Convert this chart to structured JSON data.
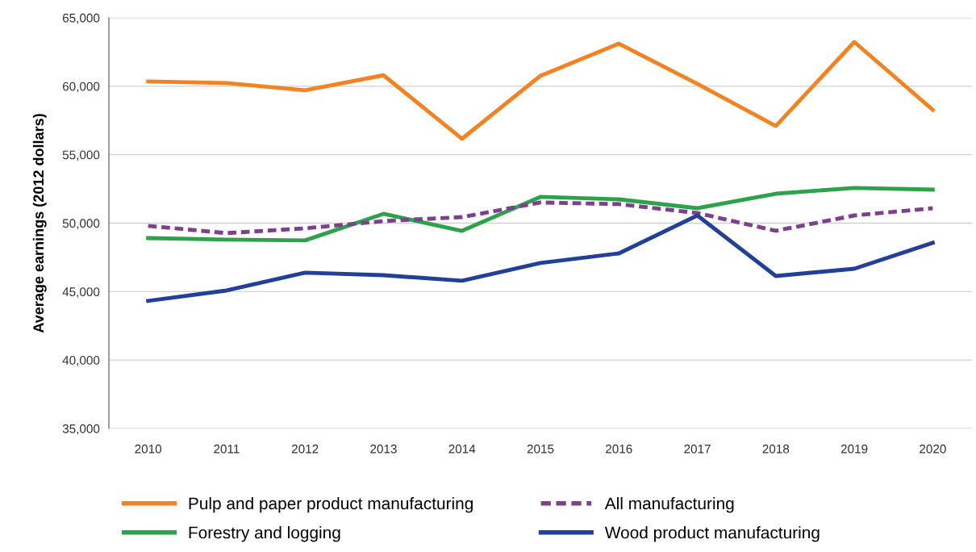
{
  "chart_data": {
    "type": "line",
    "ylabel": "Average earnings (2012 dollars)",
    "categories": [
      "2010",
      "2011",
      "2012",
      "2013",
      "2014",
      "2015",
      "2016",
      "2017",
      "2018",
      "2019",
      "2020"
    ],
    "ylim": [
      35000,
      65000
    ],
    "yticks": [
      {
        "value": 35000,
        "label": "35,000"
      },
      {
        "value": 40000,
        "label": "40,000"
      },
      {
        "value": 45000,
        "label": "45,000"
      },
      {
        "value": 50000,
        "label": "50,000"
      },
      {
        "value": 55000,
        "label": "55,000"
      },
      {
        "value": 60000,
        "label": "60,000"
      },
      {
        "value": 65000,
        "label": "65,000"
      }
    ],
    "grid": "y",
    "legend": "bottom",
    "marker": "none",
    "series": [
      {
        "name": "Pulp and paper product manufacturing",
        "color": "#f58220",
        "line_style": "solid",
        "values": [
          60350,
          60230,
          59700,
          60800,
          56160,
          60760,
          63110,
          60170,
          57100,
          63230,
          58280
        ]
      },
      {
        "name": "Forestry and logging",
        "color": "#2ca24a",
        "line_style": "solid",
        "values": [
          48910,
          48800,
          48740,
          50680,
          49440,
          51920,
          51740,
          51090,
          52150,
          52570,
          52450
        ]
      },
      {
        "name": "All manufacturing",
        "color": "#7f3f8f",
        "line_style": "dashed",
        "values": [
          49800,
          49270,
          49620,
          50150,
          50440,
          51510,
          51390,
          50740,
          49440,
          50560,
          51090
        ]
      },
      {
        "name": "Wood product manufacturing",
        "color": "#223f99",
        "line_style": "solid",
        "values": [
          44320,
          45080,
          46380,
          46200,
          45790,
          47090,
          47790,
          50560,
          46140,
          46670,
          48560
        ]
      }
    ]
  }
}
